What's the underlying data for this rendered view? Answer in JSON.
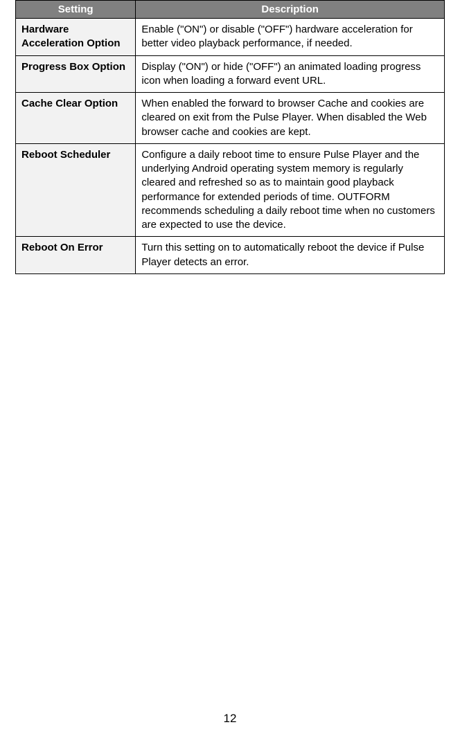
{
  "table": {
    "headers": {
      "setting": "Setting",
      "description": "Description"
    },
    "rows": [
      {
        "setting": "Hardware Acceleration Option",
        "description": "Enable (\"ON\") or disable (\"OFF\") hardware acceleration for better video playback performance, if needed."
      },
      {
        "setting": "Progress Box Option",
        "description": "Display (\"ON\") or hide (\"OFF\") an animated loading progress icon when loading a forward event URL."
      },
      {
        "setting": "Cache Clear Option",
        "description": "When enabled the forward to browser Cache and cookies are cleared on exit from the Pulse Player. When disabled the Web browser cache and cookies are kept."
      },
      {
        "setting": "Reboot Scheduler",
        "description": "Configure a daily reboot time to ensure Pulse Player and the underlying Android operating system memory is regularly cleared and refreshed so as to maintain good playback performance for extended periods of time. OUTFORM recommends scheduling a daily reboot time when no customers are expected to use the device."
      },
      {
        "setting": "Reboot On Error",
        "description": "Turn this setting on to automatically reboot the device if Pulse Player detects an error."
      }
    ]
  },
  "page_number": "12",
  "styles": {
    "header_bg": "#808080",
    "header_text_color": "#ffffff",
    "setting_cell_bg": "#f2f2f2",
    "border_color": "#000000",
    "body_bg": "#ffffff",
    "text_color": "#000000",
    "font_family": "Segoe UI, Arial, sans-serif",
    "header_fontsize": 15,
    "cell_fontsize": 15,
    "page_number_fontsize": 17,
    "col_setting_width_pct": 28,
    "col_description_width_pct": 72
  }
}
